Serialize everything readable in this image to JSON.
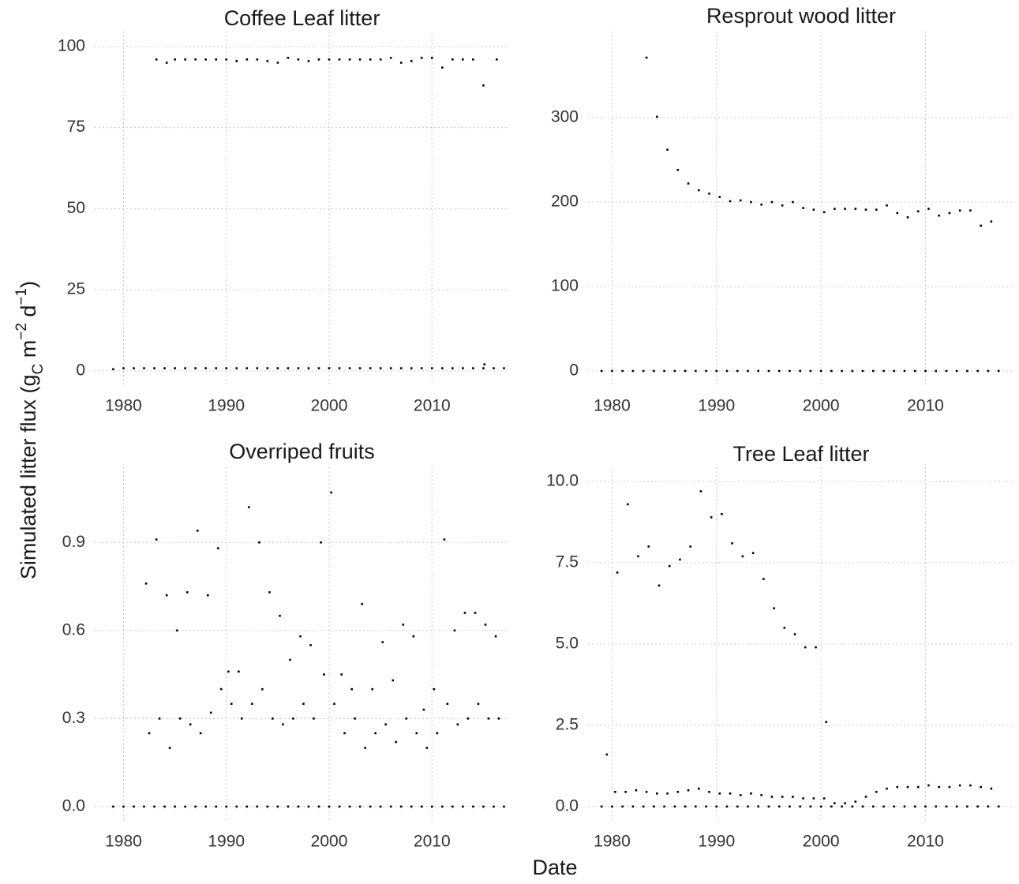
{
  "chart_data": [
    {
      "type": "scatter",
      "title": "Coffee Leaf litter",
      "color": "#000000",
      "grid": true,
      "xlim": [
        1977.2,
        2017.5
      ],
      "ylim": [
        -4.9,
        104.6
      ],
      "xticks": [
        1980,
        1990,
        2000,
        2010
      ],
      "yticks": [
        0,
        25,
        50,
        75,
        100
      ],
      "x": [
        1983.2,
        1984.2,
        1985,
        1986,
        1987,
        1988,
        1989,
        1990,
        1991,
        1992,
        1993,
        1994,
        1995,
        1996,
        1997,
        1998,
        1999,
        2000,
        2001,
        2002,
        2003,
        2004,
        2005,
        2006,
        2007,
        2008,
        2009,
        2010,
        2011,
        2012,
        2013,
        2014,
        2015,
        2016.3,
        1979,
        1980,
        1981,
        1982,
        1983,
        1984,
        1985,
        1986,
        1987,
        1988,
        1989,
        1990,
        1991,
        1992,
        1993,
        1994,
        1995,
        1996,
        1997,
        1998,
        1999,
        2000,
        2001,
        2002,
        2003,
        2004,
        2005,
        2006,
        2007,
        2008,
        2009,
        2010,
        2011,
        2012,
        2013,
        2014,
        2015,
        2016,
        2017,
        2015.1
      ],
      "values": [
        96,
        95,
        96,
        96,
        96,
        96,
        96,
        96,
        95.5,
        96,
        96,
        95.5,
        95,
        96.5,
        96,
        95.5,
        96,
        96,
        96,
        96,
        96,
        96,
        96,
        96.5,
        95,
        95.5,
        96.5,
        96.5,
        93.5,
        96,
        96,
        96,
        88,
        96,
        0.5,
        0.8,
        0.8,
        0.8,
        0.8,
        0.8,
        0.8,
        0.8,
        0.8,
        0.8,
        0.8,
        0.8,
        0.8,
        0.8,
        0.8,
        0.8,
        0.8,
        0.8,
        0.8,
        0.8,
        0.8,
        0.8,
        0.8,
        0.8,
        0.8,
        0.8,
        0.8,
        0.8,
        0.8,
        0.8,
        0.8,
        0.8,
        0.8,
        0.8,
        0.8,
        0.8,
        0.8,
        0.8,
        0.8,
        2.0
      ]
    },
    {
      "type": "scatter",
      "title": "Resprout wood litter",
      "color": "#000000",
      "grid": true,
      "xlim": [
        1977.7,
        2018.5
      ],
      "ylim": [
        -18.7,
        401.9
      ],
      "xticks": [
        1980,
        1990,
        2000,
        2010
      ],
      "yticks": [
        0,
        100,
        200,
        300
      ],
      "x": [
        1983.3,
        1984.3,
        1985.3,
        1986.3,
        1987.3,
        1988.3,
        1989.3,
        1990.3,
        1991.3,
        1992.3,
        1993.3,
        1994.3,
        1995.3,
        1996.3,
        1997.3,
        1998.3,
        1999.3,
        2000.3,
        2001.3,
        2002.3,
        2003.3,
        2004.3,
        2005.3,
        2006.3,
        2007.3,
        2008.3,
        2009.3,
        2010.3,
        2011.3,
        2012.3,
        2013.3,
        2014.3,
        2015.3,
        2016.3,
        1979,
        1980,
        1981,
        1982,
        1983,
        1984,
        1985,
        1986,
        1987,
        1988,
        1989,
        1990,
        1991,
        1992,
        1993,
        1994,
        1995,
        1996,
        1997,
        1998,
        1999,
        2000,
        2001,
        2002,
        2003,
        2004,
        2005,
        2006,
        2007,
        2008,
        2009,
        2010,
        2011,
        2012,
        2013,
        2014,
        2015,
        2016,
        2017
      ],
      "values": [
        371,
        301,
        262,
        238,
        222,
        214,
        210,
        206,
        201,
        202,
        200,
        197,
        200,
        196,
        200,
        193,
        191,
        188,
        192,
        192,
        192,
        191,
        191,
        196,
        187,
        182,
        189,
        192,
        184,
        187,
        190,
        190,
        172,
        177,
        0,
        0,
        0,
        0,
        0,
        0,
        0,
        0,
        0,
        0,
        0,
        0,
        0,
        0,
        0,
        0,
        0,
        0,
        0,
        0,
        0,
        0,
        0,
        0,
        0,
        0,
        0,
        0,
        0,
        0,
        0,
        0,
        0,
        0,
        0,
        0,
        0,
        0,
        0
      ]
    },
    {
      "type": "scatter",
      "title": "Overriped fruits",
      "color": "#000000",
      "grid": true,
      "xlim": [
        1977.2,
        2017.5
      ],
      "ylim": [
        -0.054,
        1.156
      ],
      "xticks": [
        1980,
        1990,
        2000,
        2010
      ],
      "yticks": [
        {
          "value": 0,
          "label": "0.0"
        },
        0.3,
        0.6,
        0.9
      ],
      "x": [
        1982.2,
        1983.2,
        1984.2,
        1985.2,
        1986.2,
        1987.2,
        1988.2,
        1989.2,
        1990.2,
        1991.2,
        1992.2,
        1993.2,
        1994.2,
        1995.2,
        1996.2,
        1997.2,
        1998.2,
        1999.2,
        2000.2,
        2001.2,
        2002.2,
        2003.2,
        2004.2,
        2005.2,
        2006.2,
        2007.2,
        2008.2,
        2009.2,
        2010.2,
        2011.2,
        2012.2,
        2013.2,
        2014.2,
        2015.2,
        2016.2,
        1982.5,
        1983.5,
        1984.5,
        1985.5,
        1986.5,
        1987.5,
        1988.5,
        1989.5,
        1990.5,
        1991.5,
        1992.5,
        1993.5,
        1994.5,
        1995.5,
        1996.5,
        1997.5,
        1998.5,
        1999.5,
        2000.5,
        2001.5,
        2002.5,
        2003.5,
        2004.5,
        2005.5,
        2006.5,
        2007.5,
        2008.5,
        2009.5,
        2010.5,
        2011.5,
        2012.5,
        2013.5,
        2014.5,
        2015.5,
        2016.5,
        1979,
        1980,
        1981,
        1982,
        1983,
        1984,
        1985,
        1986,
        1987,
        1988,
        1989,
        1990,
        1991,
        1992,
        1993,
        1994,
        1995,
        1996,
        1997,
        1998,
        1999,
        2000,
        2001,
        2002,
        2003,
        2004,
        2005,
        2006,
        2007,
        2008,
        2009,
        2010,
        2011,
        2012,
        2013,
        2014,
        2015,
        2016,
        2017
      ],
      "values": [
        0.76,
        0.91,
        0.72,
        0.6,
        0.73,
        0.94,
        0.72,
        0.88,
        0.46,
        0.46,
        1.02,
        0.9,
        0.73,
        0.65,
        0.5,
        0.58,
        0.55,
        0.9,
        1.07,
        0.45,
        0.4,
        0.69,
        0.4,
        0.56,
        0.43,
        0.62,
        0.58,
        0.33,
        0.4,
        0.91,
        0.6,
        0.66,
        0.66,
        0.62,
        0.58,
        0.25,
        0.3,
        0.2,
        0.3,
        0.28,
        0.25,
        0.32,
        0.4,
        0.35,
        0.3,
        0.35,
        0.4,
        0.3,
        0.28,
        0.3,
        0.35,
        0.3,
        0.45,
        0.35,
        0.25,
        0.3,
        0.2,
        0.25,
        0.28,
        0.22,
        0.3,
        0.25,
        0.2,
        0.25,
        0.35,
        0.28,
        0.3,
        0.35,
        0.3,
        0.3,
        0,
        0,
        0,
        0,
        0,
        0,
        0,
        0,
        0,
        0,
        0,
        0,
        0,
        0,
        0,
        0,
        0,
        0,
        0,
        0,
        0,
        0,
        0,
        0,
        0,
        0,
        0,
        0,
        0,
        0,
        0,
        0,
        0,
        0,
        0,
        0,
        0,
        0,
        0
      ]
    },
    {
      "type": "scatter",
      "title": "Tree Leaf litter",
      "color": "#000000",
      "grid": true,
      "xlim": [
        1977.7,
        2018.5
      ],
      "ylim": [
        -0.49,
        10.44
      ],
      "xticks": [
        1980,
        1990,
        2000,
        2010
      ],
      "yticks": [
        {
          "value": 0,
          "label": "0.0"
        },
        2.5,
        {
          "value": 5,
          "label": "5.0"
        },
        7.5,
        {
          "value": 10,
          "label": "10.0"
        }
      ],
      "x": [
        1979.5,
        1980.5,
        1981.5,
        1982.5,
        1983.5,
        1984.5,
        1985.5,
        1986.5,
        1987.5,
        1988.5,
        1989.5,
        1990.5,
        1991.5,
        1992.5,
        1993.5,
        1994.5,
        1995.5,
        1996.5,
        1997.5,
        1998.5,
        1999.5,
        2000.5,
        1980.3,
        1981.3,
        1982.3,
        1983.3,
        1984.3,
        1985.3,
        1986.3,
        1987.3,
        1988.3,
        1989.3,
        1990.3,
        1991.3,
        1992.3,
        1993.3,
        1994.3,
        1995.3,
        1996.3,
        1997.3,
        1998.3,
        1999.3,
        2000.3,
        2001.3,
        2002.3,
        2003.3,
        2004.3,
        2005.3,
        2006.3,
        2007.3,
        2008.3,
        2009.3,
        2010.3,
        2011.3,
        2012.3,
        2013.3,
        2014.3,
        2015.3,
        2016.3,
        1979,
        1980,
        1981,
        1982,
        1983,
        1984,
        1985,
        1986,
        1987,
        1988,
        1989,
        1990,
        1991,
        1992,
        1993,
        1994,
        1995,
        1996,
        1997,
        1998,
        1999,
        2000,
        2001,
        2002,
        2003,
        2004,
        2005,
        2006,
        2007,
        2008,
        2009,
        2010,
        2011,
        2012,
        2013,
        2014,
        2015,
        2016,
        2017
      ],
      "values": [
        1.6,
        7.2,
        9.3,
        7.7,
        8.0,
        6.8,
        7.4,
        7.6,
        8.0,
        9.7,
        8.9,
        9.0,
        8.1,
        7.7,
        7.8,
        7.0,
        6.1,
        5.5,
        5.3,
        4.9,
        4.9,
        2.6,
        0.45,
        0.45,
        0.5,
        0.45,
        0.4,
        0.4,
        0.45,
        0.5,
        0.55,
        0.45,
        0.4,
        0.4,
        0.35,
        0.4,
        0.35,
        0.3,
        0.3,
        0.3,
        0.25,
        0.25,
        0.25,
        0.1,
        0.1,
        0.15,
        0.3,
        0.45,
        0.55,
        0.6,
        0.6,
        0.6,
        0.65,
        0.6,
        0.6,
        0.65,
        0.65,
        0.6,
        0.55,
        0,
        0,
        0,
        0,
        0,
        0,
        0,
        0,
        0,
        0,
        0,
        0,
        0,
        0,
        0,
        0,
        0,
        0,
        0,
        0,
        0,
        0,
        0,
        0,
        0,
        0,
        0,
        0,
        0,
        0,
        0,
        0,
        0,
        0,
        0,
        0,
        0,
        0,
        0
      ]
    }
  ],
  "shared_axis": {
    "x_label": "Date",
    "y_label": [
      "Simulated litter flux  (g",
      "C",
      " m",
      "−2",
      " d",
      "−1",
      ")"
    ]
  }
}
